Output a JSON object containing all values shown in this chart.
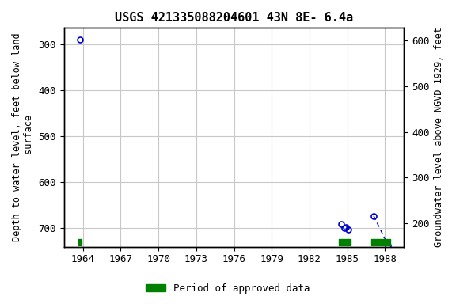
{
  "title": "USGS 421335088204601 43N 8E- 6.4a",
  "ylabel_left": "Depth to water level, feet below land\n surface",
  "ylabel_right": "Groundwater level above NGVD 1929, feet",
  "xlim": [
    1962.5,
    1989.5
  ],
  "ylim_left": [
    740,
    265
  ],
  "ylim_right": [
    148,
    628
  ],
  "xticks": [
    1964,
    1967,
    1970,
    1973,
    1976,
    1979,
    1982,
    1985,
    1988
  ],
  "yticks_left": [
    300,
    400,
    500,
    600,
    700
  ],
  "yticks_right": [
    200,
    300,
    400,
    500,
    600
  ],
  "grid_color": "#c8c8c8",
  "data_points_x": [
    1963.8,
    1984.5,
    1984.75,
    1984.9,
    1985.1,
    1987.1,
    1988.25
  ],
  "data_points_y": [
    291,
    691,
    700,
    697,
    703,
    673,
    737
  ],
  "marker_color": "#0000cc",
  "marker_size": 5,
  "dashed_line_x": [
    1987.1,
    1988.25
  ],
  "dashed_line_y": [
    673,
    737
  ],
  "approved_periods": [
    {
      "x_start": 1963.65,
      "x_end": 1963.9
    },
    {
      "x_start": 1984.35,
      "x_end": 1985.25
    },
    {
      "x_start": 1986.9,
      "x_end": 1988.4
    }
  ],
  "approved_color": "#008000",
  "approved_bar_y": 730,
  "approved_bar_height": 7,
  "legend_label": "Period of approved data",
  "background_color": "#ffffff",
  "title_fontsize": 11,
  "axis_label_fontsize": 8.5,
  "tick_fontsize": 9
}
